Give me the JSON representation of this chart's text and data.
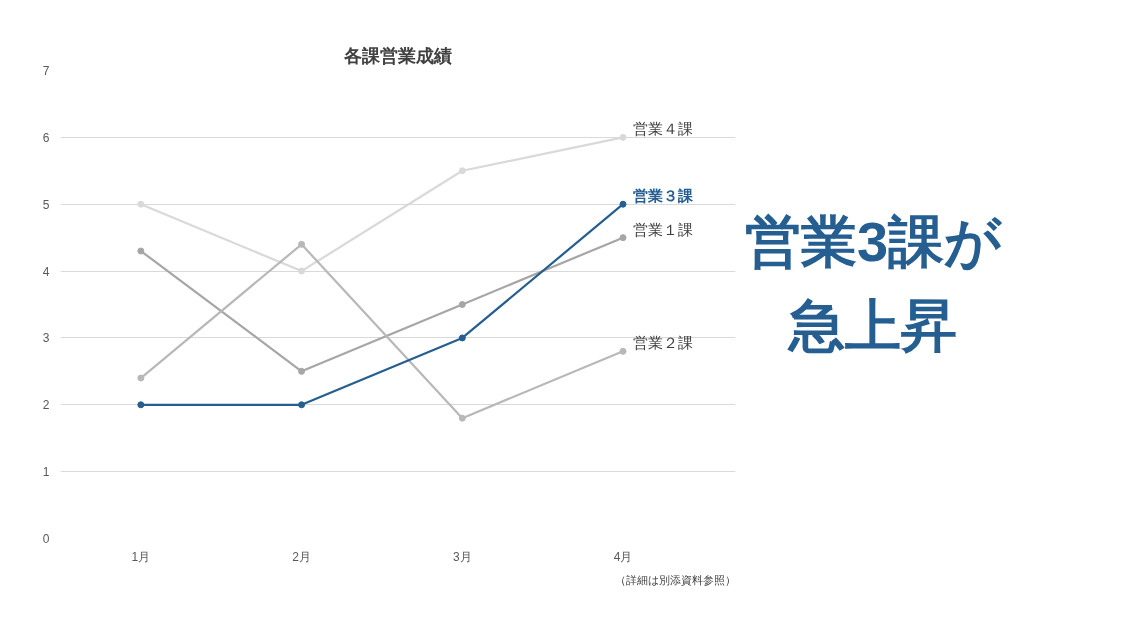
{
  "chart_data": {
    "type": "line",
    "title": "各課営業成績",
    "categories": [
      "1月",
      "2月",
      "3月",
      "4月"
    ],
    "series": [
      {
        "name": "営業４課",
        "color": "#d9d9d9",
        "values": [
          5,
          4,
          5.5,
          6
        ]
      },
      {
        "name": "営業１課",
        "color": "#a6a6a6",
        "values": [
          4.3,
          2.5,
          3.5,
          4.5
        ]
      },
      {
        "name": "営業２課",
        "color": "#b8b8b8",
        "values": [
          2.4,
          4.4,
          1.8,
          2.8
        ]
      },
      {
        "name": "営業３課",
        "color": "#255e91",
        "values": [
          2,
          2,
          3,
          5
        ]
      }
    ],
    "ylim": [
      0,
      7
    ],
    "yticks": [
      0,
      1,
      2,
      3,
      4,
      5,
      6,
      7
    ],
    "grid": "y",
    "marker": "circle",
    "line_style": "solid",
    "annotations": [
      "営業3課が",
      "急上昇",
      "（詳細は別添資料参照）"
    ]
  }
}
